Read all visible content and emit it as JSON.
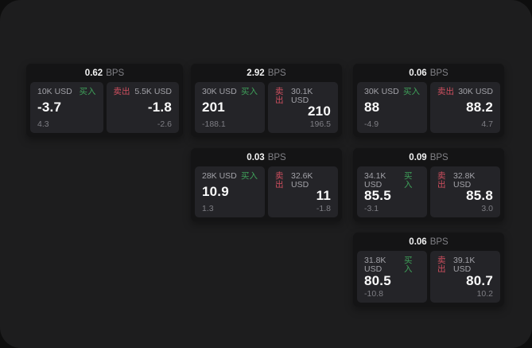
{
  "labels": {
    "bps_unit": "BPS",
    "buy": "买入",
    "sell": "卖出"
  },
  "colors": {
    "buy_green": "#3fa25a",
    "sell_red": "#d04f5f",
    "panel_bg": "#1d1d1e",
    "card_bg": "#141415",
    "tile_bg": "#242428"
  },
  "cards": [
    {
      "bps": "0.62",
      "buy": {
        "notional": "10K USD",
        "value": "-3.7",
        "delta": "4.3"
      },
      "sell": {
        "notional": "5.5K USD",
        "value": "-1.8",
        "delta": "-2.6"
      }
    },
    {
      "bps": "2.92",
      "buy": {
        "notional": "30K USD",
        "value": "201",
        "delta": "-188.1"
      },
      "sell": {
        "notional": "30.1K USD",
        "value": "210",
        "delta": "196.5"
      }
    },
    {
      "bps": "0.06",
      "buy": {
        "notional": "30K USD",
        "value": "88",
        "delta": "-4.9"
      },
      "sell": {
        "notional": "30K USD",
        "value": "88.2",
        "delta": "4.7"
      }
    },
    {
      "bps": "0.03",
      "buy": {
        "notional": "28K USD",
        "value": "10.9",
        "delta": "1.3"
      },
      "sell": {
        "notional": "32.6K USD",
        "value": "11",
        "delta": "-1.8"
      }
    },
    {
      "bps": "0.09",
      "buy": {
        "notional": "34.1K USD",
        "value": "85.5",
        "delta": "-3.1"
      },
      "sell": {
        "notional": "32.8K USD",
        "value": "85.8",
        "delta": "3.0"
      }
    },
    {
      "bps": "0.06",
      "buy": {
        "notional": "31.8K USD",
        "value": "80.5",
        "delta": "-10.8"
      },
      "sell": {
        "notional": "39.1K USD",
        "value": "80.7",
        "delta": "10.2"
      }
    }
  ]
}
